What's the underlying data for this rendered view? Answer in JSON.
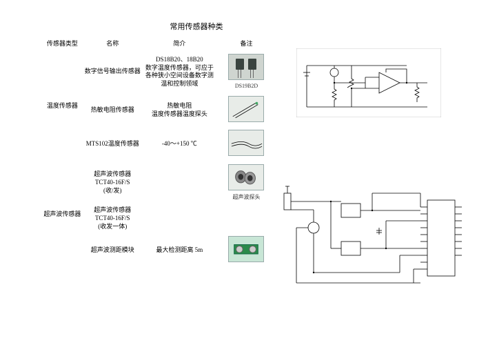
{
  "title": "常用传感器种类",
  "headers": {
    "type": "传感器类型",
    "name": "名称",
    "desc": "简介",
    "note": "备注"
  },
  "groups": [
    {
      "type_label": "温度传感器",
      "rows": [
        {
          "name": "数字信号输出传感器",
          "desc": "DS18B20、18B20\n数字温度传感器，可应于各种狭小空间设备数字测温和控制领域",
          "caption": "DS19B2D",
          "thumb_class": "",
          "thumb_kind": "to92pair"
        },
        {
          "name": "热敏电阻传感器",
          "desc": "热敏电阻\n温度传感器温度探头",
          "caption": "",
          "thumb_class": "light",
          "thumb_kind": "probe"
        },
        {
          "name": "MTS102温度传感器",
          "desc": "-40～+150 ℃",
          "caption": "",
          "thumb_class": "light",
          "thumb_kind": "cable"
        }
      ]
    },
    {
      "type_label": "超声波传感器",
      "rows": [
        {
          "name": "超声波传感器\nTCT40-16F/S\n(收/发)",
          "desc": "",
          "caption": "超声波探头",
          "thumb_class": "light",
          "thumb_kind": "transducer"
        },
        {
          "name": "超声波传感器\nTCT40-16F/S\n(收发一体)",
          "desc": "",
          "caption": "",
          "thumb_class": "",
          "thumb_kind": "blank"
        },
        {
          "name": "超声波测距模块",
          "desc": "最大检测距离   5m",
          "caption": "",
          "thumb_class": "green",
          "thumb_kind": "module"
        }
      ]
    }
  ]
}
